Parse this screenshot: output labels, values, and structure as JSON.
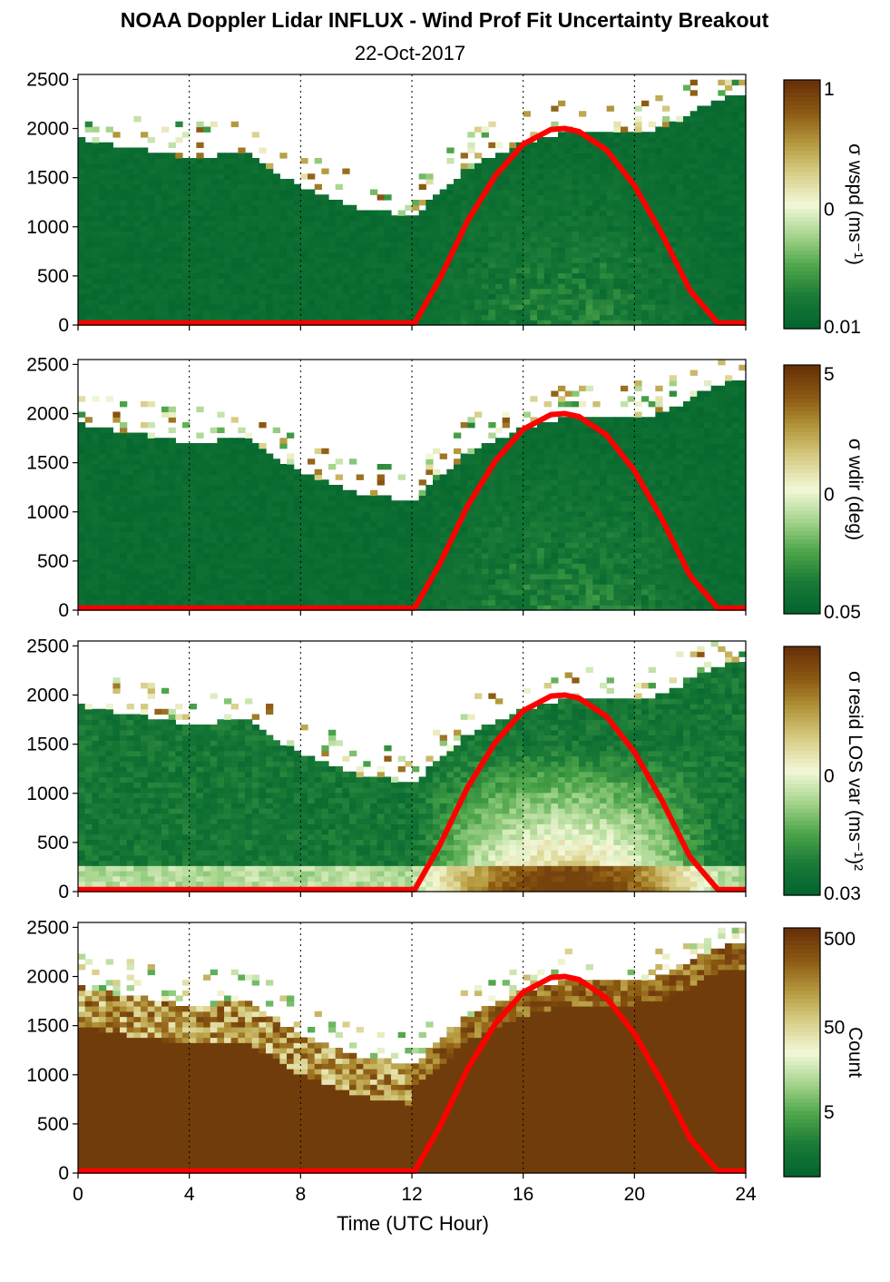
{
  "figure": {
    "title": "NOAA Doppler Lidar INFLUX - Wind Prof Fit Uncertainty Breakout",
    "subtitle": "22-Oct-2017",
    "xlabel": "Time (UTC Hour)",
    "x_ticks": [
      "0",
      "4",
      "8",
      "12",
      "16",
      "20",
      "24"
    ],
    "y_ticks": [
      "0",
      "500",
      "1000",
      "1500",
      "2000",
      "2500"
    ]
  },
  "colors": {
    "sun_curve": "#ff0000",
    "colormap": [
      "#03652e",
      "#1a7a37",
      "#4ea64a",
      "#a6d58e",
      "#f3f8d8",
      "#d9cf8a",
      "#b59a3e",
      "#8c5a12",
      "#683209"
    ]
  },
  "chart_data": [
    {
      "type": "heatmap",
      "xlabel": "Time (UTC Hour)",
      "ylabel": "",
      "xlim": [
        0,
        24
      ],
      "ylim": [
        0,
        2550
      ],
      "colorbar": {
        "label": "σ wspd (ms⁻¹)",
        "ticks": [
          "1",
          "0",
          "0.01"
        ],
        "range": [
          0.01,
          1
        ]
      },
      "grid": "dotted vertical at 4-hour intervals",
      "top_height_profile_m": {
        "x": [
          0,
          2,
          4,
          6,
          8,
          10,
          12,
          14,
          16,
          17.5,
          19,
          21,
          23,
          24
        ],
        "y": [
          1900,
          1800,
          1700,
          1750,
          1400,
          1200,
          1100,
          1600,
          1850,
          1950,
          1950,
          2000,
          2300,
          2350
        ]
      },
      "overlay_curve": {
        "name": "",
        "x": [
          0,
          12.1,
          13,
          14,
          15,
          16,
          17,
          17.5,
          18,
          19,
          20,
          21,
          22,
          23,
          24
        ],
        "y": [
          20,
          20,
          470,
          1060,
          1520,
          1840,
          1990,
          2000,
          1970,
          1780,
          1420,
          920,
          350,
          20,
          20
        ]
      }
    },
    {
      "type": "heatmap",
      "xlabel": "Time (UTC Hour)",
      "ylabel": "",
      "xlim": [
        0,
        24
      ],
      "ylim": [
        0,
        2550
      ],
      "colorbar": {
        "label": "σ wdir (deg)",
        "ticks": [
          "5",
          "0",
          "0.05"
        ],
        "range": [
          0.05,
          5
        ]
      },
      "grid": "dotted vertical at 4-hour intervals",
      "top_height_profile_m": {
        "x": [
          0,
          2,
          4,
          6,
          8,
          10,
          12,
          14,
          16,
          17.5,
          19,
          21,
          23,
          24
        ],
        "y": [
          1900,
          1800,
          1700,
          1750,
          1400,
          1200,
          1100,
          1600,
          1850,
          1950,
          1950,
          2000,
          2300,
          2350
        ]
      },
      "overlay_curve": {
        "name": "",
        "x": [
          0,
          12.1,
          13,
          14,
          15,
          16,
          17,
          17.5,
          18,
          19,
          20,
          21,
          22,
          23,
          24
        ],
        "y": [
          20,
          20,
          470,
          1060,
          1520,
          1840,
          1990,
          2000,
          1970,
          1780,
          1420,
          920,
          350,
          20,
          20
        ]
      }
    },
    {
      "type": "heatmap",
      "xlabel": "Time (UTC Hour)",
      "ylabel": "",
      "xlim": [
        0,
        24
      ],
      "ylim": [
        0,
        2550
      ],
      "colorbar": {
        "label": "σ resid LOS var (ms⁻¹)²",
        "ticks": [
          "0",
          "0.03"
        ],
        "range": [
          0.03,
          1
        ]
      },
      "grid": "dotted vertical at 4-hour intervals",
      "top_height_profile_m": {
        "x": [
          0,
          2,
          4,
          6,
          8,
          10,
          12,
          14,
          16,
          17.5,
          19,
          21,
          23,
          24
        ],
        "y": [
          1900,
          1800,
          1700,
          1750,
          1400,
          1200,
          1100,
          1600,
          1850,
          1950,
          1950,
          2000,
          2300,
          2350
        ]
      },
      "overlay_curve": {
        "name": "",
        "x": [
          0,
          12.1,
          13,
          14,
          15,
          16,
          17,
          17.5,
          18,
          19,
          20,
          21,
          22,
          23,
          24
        ],
        "y": [
          20,
          20,
          470,
          1060,
          1520,
          1840,
          1990,
          2000,
          1970,
          1780,
          1420,
          920,
          350,
          20,
          20
        ]
      }
    },
    {
      "type": "heatmap",
      "xlabel": "Time (UTC Hour)",
      "ylabel": "",
      "xlim": [
        0,
        24
      ],
      "ylim": [
        0,
        2550
      ],
      "colorbar": {
        "label": "Count",
        "ticks": [
          "500",
          "50",
          "5"
        ],
        "range": [
          1,
          500
        ],
        "scale": "log"
      },
      "grid": "dotted vertical at 4-hour intervals",
      "top_height_profile_m": {
        "x": [
          0,
          2,
          4,
          6,
          8,
          10,
          12,
          14,
          16,
          17.5,
          19,
          21,
          23,
          24
        ],
        "y": [
          1900,
          1800,
          1700,
          1750,
          1400,
          1200,
          1100,
          1600,
          1850,
          1950,
          1950,
          2000,
          2300,
          2350
        ]
      },
      "overlay_curve": {
        "name": "",
        "x": [
          0,
          12.1,
          13,
          14,
          15,
          16,
          17,
          17.5,
          18,
          19,
          20,
          21,
          22,
          23,
          24
        ],
        "y": [
          20,
          20,
          470,
          1060,
          1520,
          1840,
          1990,
          2000,
          1970,
          1780,
          1420,
          920,
          350,
          20,
          20
        ]
      }
    }
  ]
}
